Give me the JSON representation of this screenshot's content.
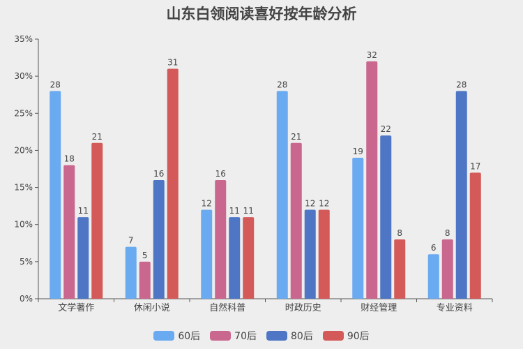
{
  "chart_data": {
    "type": "bar",
    "title": "山东白领阅读喜好按年龄分析",
    "xlabel": "",
    "ylabel": "",
    "ylim": [
      0,
      35
    ],
    "y_ticks": [
      "0%",
      "5%",
      "10%",
      "15%",
      "20%",
      "25%",
      "30%",
      "35%"
    ],
    "y_tick_values": [
      0,
      5,
      10,
      15,
      20,
      25,
      30,
      35
    ],
    "categories": [
      "文学著作",
      "休闲小说",
      "自然科普",
      "时政历史",
      "财经管理",
      "专业资料"
    ],
    "series": [
      {
        "name": "60后",
        "color": "#6aaaf0",
        "values": [
          28,
          7,
          12,
          28,
          19,
          6
        ]
      },
      {
        "name": "70后",
        "color": "#c9678f",
        "values": [
          18,
          5,
          16,
          21,
          32,
          8
        ]
      },
      {
        "name": "80后",
        "color": "#4f76c5",
        "values": [
          11,
          16,
          11,
          12,
          22,
          28
        ]
      },
      {
        "name": "90后",
        "color": "#d45a59",
        "values": [
          21,
          31,
          11,
          12,
          8,
          17
        ]
      }
    ],
    "grid": false,
    "legend_position": "bottom-center"
  }
}
